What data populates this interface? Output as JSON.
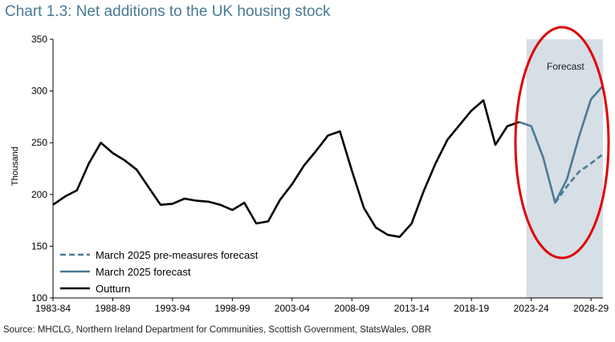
{
  "title": "Chart 1.3: Net additions to the UK housing stock",
  "source": "Source: MHCLG, Northern Ireland Department for Communities, Scottish Government, StatsWales, OBR",
  "chart_data": {
    "type": "line",
    "ylabel": "Thousand",
    "ylim": [
      100,
      350
    ],
    "yticks": [
      100,
      150,
      200,
      250,
      300,
      350
    ],
    "xlim": [
      1983,
      2029
    ],
    "xtick_labels": [
      "1983-84",
      "1988-89",
      "1993-94",
      "1998-99",
      "2003-04",
      "2008-09",
      "2013-14",
      "2018-19",
      "2023-24",
      "2028-29"
    ],
    "xtick_years": [
      1983,
      1988,
      1993,
      1998,
      2003,
      2008,
      2013,
      2018,
      2023,
      2028
    ],
    "shaded_region": {
      "label": "Forecast",
      "from": 2022.6,
      "to": 2029,
      "color": "#d6dee6"
    },
    "annotation": {
      "type": "ellipse",
      "color": "#e00000"
    },
    "legend_placement": "bottom-left",
    "series": [
      {
        "name": "March 2025 pre-measures forecast",
        "style": "dashed",
        "color": "#4a7a94",
        "x": [
          2025,
          2026,
          2027,
          2028,
          2029
        ],
        "y": [
          192,
          208,
          222,
          230,
          239
        ]
      },
      {
        "name": "March 2025 forecast",
        "style": "solid",
        "color": "#4a7a94",
        "x": [
          2022,
          2023,
          2024,
          2025,
          2026,
          2027,
          2028,
          2029
        ],
        "y": [
          270,
          266,
          236,
          192,
          215,
          256,
          292,
          305
        ]
      },
      {
        "name": "Outturn",
        "style": "solid",
        "color": "#000000",
        "x": [
          1983,
          1984,
          1985,
          1986,
          1987,
          1988,
          1989,
          1990,
          1991,
          1992,
          1993,
          1994,
          1995,
          1996,
          1997,
          1998,
          1999,
          2000,
          2001,
          2002,
          2003,
          2004,
          2005,
          2006,
          2007,
          2008,
          2009,
          2010,
          2011,
          2012,
          2013,
          2014,
          2015,
          2016,
          2017,
          2018,
          2019,
          2020,
          2021,
          2022
        ],
        "y": [
          190,
          198,
          204,
          230,
          250,
          240,
          233,
          224,
          207,
          190,
          191,
          196,
          194,
          193,
          190,
          185,
          192,
          172,
          174,
          195,
          210,
          228,
          242,
          257,
          261,
          223,
          187,
          168,
          161,
          159,
          172,
          203,
          230,
          253,
          267,
          281,
          291,
          248,
          266,
          270
        ]
      }
    ]
  }
}
